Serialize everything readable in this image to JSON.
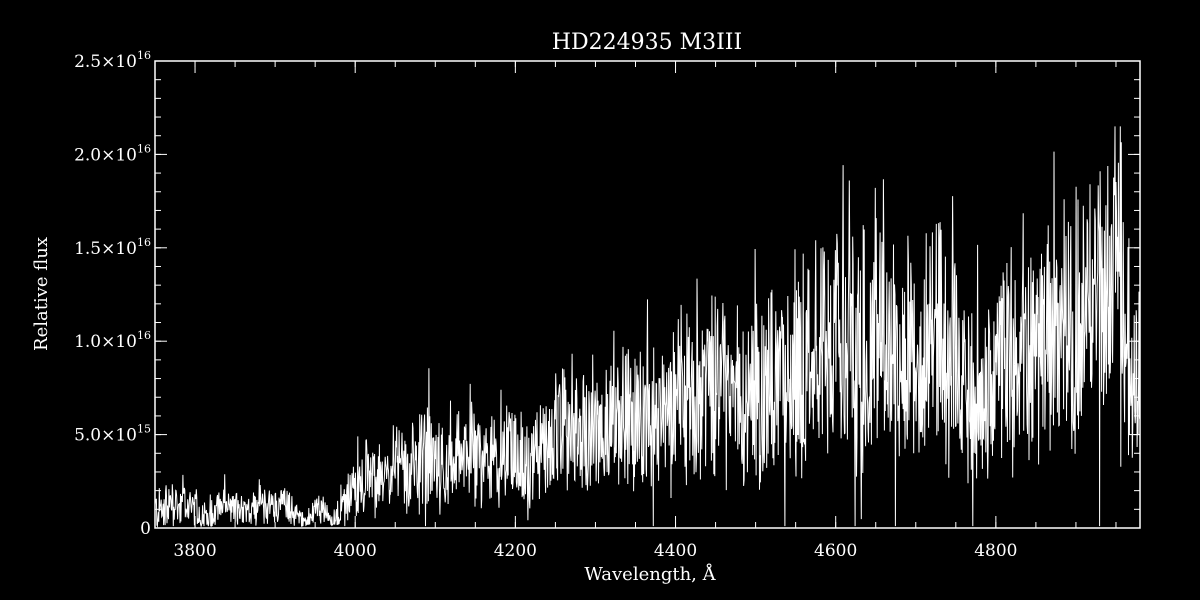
{
  "chart_data": {
    "type": "line",
    "title": "HD224935   M3III",
    "xlabel": "Wavelength, Å",
    "ylabel": "Relative flux",
    "xlim": [
      3750,
      4980
    ],
    "ylim": [
      0,
      2.5e+16
    ],
    "x_ticks": [
      {
        "value": 3800,
        "label": "3800"
      },
      {
        "value": 4000,
        "label": "4000"
      },
      {
        "value": 4200,
        "label": "4200"
      },
      {
        "value": 4400,
        "label": "4400"
      },
      {
        "value": 4600,
        "label": "4600"
      },
      {
        "value": 4800,
        "label": "4800"
      }
    ],
    "x_minor_step": 50,
    "y_ticks": [
      {
        "value": 0,
        "mant": "0",
        "exp": ""
      },
      {
        "value": 5000000000000000.0,
        "mant": "5.0×10",
        "exp": "15"
      },
      {
        "value": 1e+16,
        "mant": "1.0×10",
        "exp": "16"
      },
      {
        "value": 1.5e+16,
        "mant": "1.5×10",
        "exp": "16"
      },
      {
        "value": 2e+16,
        "mant": "2.0×10",
        "exp": "16"
      },
      {
        "value": 2.5e+16,
        "mant": "2.5×10",
        "exp": "16"
      }
    ],
    "y_minor_step": 1000000000000000.0,
    "grid": false,
    "series": [
      {
        "color": "#ffffff",
        "x": [
          3750,
          3760,
          3770,
          3780,
          3790,
          3800,
          3810,
          3820,
          3830,
          3840,
          3850,
          3860,
          3870,
          3880,
          3890,
          3900,
          3910,
          3920,
          3930,
          3940,
          3950,
          3960,
          3970,
          3980,
          3990,
          4000,
          4010,
          4020,
          4030,
          4040,
          4050,
          4060,
          4070,
          4080,
          4090,
          4100,
          4110,
          4120,
          4130,
          4140,
          4150,
          4160,
          4170,
          4180,
          4190,
          4200,
          4210,
          4220,
          4230,
          4240,
          4250,
          4260,
          4270,
          4280,
          4290,
          4300,
          4310,
          4320,
          4330,
          4340,
          4350,
          4360,
          4370,
          4380,
          4390,
          4400,
          4410,
          4420,
          4430,
          4440,
          4450,
          4460,
          4470,
          4480,
          4490,
          4500,
          4510,
          4520,
          4530,
          4540,
          4550,
          4560,
          4570,
          4580,
          4590,
          4600,
          4610,
          4620,
          4630,
          4640,
          4650,
          4660,
          4670,
          4680,
          4690,
          4700,
          4710,
          4720,
          4730,
          4740,
          4750,
          4760,
          4770,
          4780,
          4790,
          4800,
          4810,
          4820,
          4830,
          4840,
          4850,
          4860,
          4870,
          4880,
          4890,
          4900,
          4910,
          4920,
          4930,
          4940,
          4950,
          4960,
          4970,
          4980
        ],
        "y": [
          900000000000000.0,
          1200000000000000.0,
          1400000000000000.0,
          1100000000000000.0,
          1300000000000000.0,
          1000000000000000.0,
          800000000000000.0,
          900000000000000.0,
          1200000000000000.0,
          1000000000000000.0,
          1100000000000000.0,
          900000000000000.0,
          1000000000000000.0,
          1300000000000000.0,
          1100000000000000.0,
          1200000000000000.0,
          1400000000000000.0,
          1000000000000000.0,
          600000000000000.0,
          400000000000000.0,
          900000000000000.0,
          1100000000000000.0,
          300000000000000.0,
          800000000000000.0,
          1600000000000000.0,
          2200000000000000.0,
          2600000000000000.0,
          3000000000000000.0,
          2400000000000000.0,
          2700000000000000.0,
          3400000000000000.0,
          2900000000000000.0,
          2500000000000000.0,
          3300000000000000.0,
          3800000000000000.0,
          3100000000000000.0,
          3400000000000000.0,
          3000000000000000.0,
          3700000000000000.0,
          4000000000000000.0,
          3500000000000000.0,
          3300000000000000.0,
          4100000000000000.0,
          3700000000000000.0,
          4300000000000000.0,
          4000000000000000.0,
          3600000000000000.0,
          3200000000000000.0,
          4400000000000000.0,
          3800000000000000.0,
          4800000000000000.0,
          5000000000000000.0,
          4400000000000000.0,
          5400000000000000.0,
          5000000000000000.0,
          5600000000000000.0,
          5200000000000000.0,
          6000000000000000.0,
          5500000000000000.0,
          6400000000000000.0,
          6000000000000000.0,
          5400000000000000.0,
          6600000000000000.0,
          6200000000000000.0,
          5900000000000000.0,
          6800000000000000.0,
          6300000000000000.0,
          7200000000000000.0,
          6600000000000000.0,
          7400000000000000.0,
          7800000000000000.0,
          7000000000000000.0,
          6800000000000000.0,
          7600000000000000.0,
          7300000000000000.0,
          8000000000000000.0,
          7200000000000000.0,
          8300000000000000.0,
          7800000000000000.0,
          8000000000000000.0,
          8600000000000000.0,
          9000000000000000.0,
          8400000000000000.0,
          9600000000000000.0,
          8800000000000000.0,
          9200000000000000.0,
          9800000000000000.0,
          1.02e+16,
          9000000000000000.0,
          8400000000000000.0,
          9400000000000000.0,
          1e+16,
          9300000000000000.0,
          8800000000000000.0,
          9700000000000000.0,
          1.03e+16,
          9500000000000000.0,
          1.06e+16,
          9800000000000000.0,
          1.02e+16,
          9400000000000000.0,
          6800000000000000.0,
          6400000000000000.0,
          6000000000000000.0,
          7500000000000000.0,
          8000000000000000.0,
          9200000000000000.0,
          8600000000000000.0,
          9000000000000000.0,
          9800000000000000.0,
          8900000000000000.0,
          9600000000000000.0,
          1.02e+16,
          9400000000000000.0,
          1e+16,
          1.1e+16,
          1.2e+16,
          1.28e+16,
          1.35e+16,
          1.26e+16,
          1.42e+16,
          1.38e+16,
          6500000000000000.0,
          8500000000000000.0
        ],
        "noise": [
          1600000000000000.0,
          1400000000000000.0,
          1200000000000000.0,
          1300000000000000.0,
          1200000000000000.0,
          1100000000000000.0,
          1000000000000000.0,
          1200000000000000.0,
          1100000000000000.0,
          1000000000000000.0,
          1200000000000000.0,
          1100000000000000.0,
          1000000000000000.0,
          1100000000000000.0,
          1200000000000000.0,
          1000000000000000.0,
          1100000000000000.0,
          1000000000000000.0,
          700000000000000.0,
          600000000000000.0,
          1000000000000000.0,
          1000000000000000.0,
          400000000000000.0,
          800000000000000.0,
          1400000000000000.0,
          2000000000000000.0,
          2200000000000000.0,
          2400000000000000.0,
          2200000000000000.0,
          2400000000000000.0,
          2600000000000000.0,
          2400000000000000.0,
          2200000000000000.0,
          2800000000000000.0,
          3200000000000000.0,
          2600000000000000.0,
          2800000000000000.0,
          2600000000000000.0,
          3000000000000000.0,
          3200000000000000.0,
          2800000000000000.0,
          2800000000000000.0,
          3200000000000000.0,
          3000000000000000.0,
          3400000000000000.0,
          3200000000000000.0,
          2800000000000000.0,
          2800000000000000.0,
          3400000000000000.0,
          3200000000000000.0,
          3800000000000000.0,
          3800000000000000.0,
          3600000000000000.0,
          4200000000000000.0,
          3800000000000000.0,
          4400000000000000.0,
          4000000000000000.0,
          4600000000000000.0,
          4400000000000000.0,
          4800000000000000.0,
          4600000000000000.0,
          4200000000000000.0,
          5000000000000000.0,
          4800000000000000.0,
          4600000000000000.0,
          5200000000000000.0,
          4800000000000000.0,
          5400000000000000.0,
          5000000000000000.0,
          5600000000000000.0,
          5800000000000000.0,
          5400000000000000.0,
          5200000000000000.0,
          5600000000000000.0,
          5400000000000000.0,
          6000000000000000.0,
          5600000000000000.0,
          6200000000000000.0,
          6000000000000000.0,
          6000000000000000.0,
          6400000000000000.0,
          6800000000000000.0,
          6400000000000000.0,
          7000000000000000.0,
          6600000000000000.0,
          6800000000000000.0,
          7200000000000000.0,
          7400000000000000.0,
          6800000000000000.0,
          6400000000000000.0,
          7000000000000000.0,
          7200000000000000.0,
          6800000000000000.0,
          6600000000000000.0,
          7000000000000000.0,
          7400000000000000.0,
          7000000000000000.0,
          7600000000000000.0,
          7200000000000000.0,
          7400000000000000.0,
          7000000000000000.0,
          5600000000000000.0,
          5200000000000000.0,
          5000000000000000.0,
          5800000000000000.0,
          6200000000000000.0,
          6800000000000000.0,
          6400000000000000.0,
          6600000000000000.0,
          7200000000000000.0,
          6600000000000000.0,
          7000000000000000.0,
          7400000000000000.0,
          7000000000000000.0,
          7400000000000000.0,
          8000000000000000.0,
          8600000000000000.0,
          9000000000000000.0,
          9400000000000000.0,
          9000000000000000.0,
          9800000000000000.0,
          9600000000000000.0,
          5400000000000000.0,
          6400000000000000.0
        ]
      }
    ]
  }
}
